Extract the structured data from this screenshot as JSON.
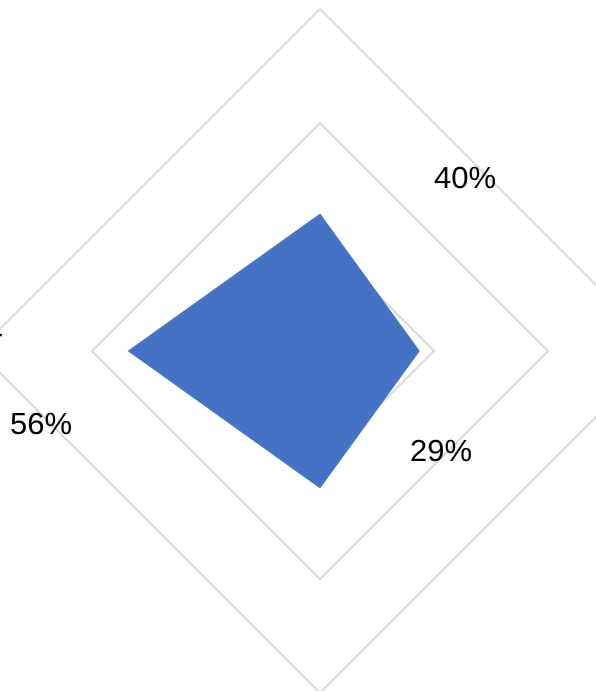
{
  "chart_data": {
    "type": "radar",
    "axes": [
      "",
      "",
      "",
      ""
    ],
    "visible_axis_labels": [
      "r"
    ],
    "series": [
      {
        "values": [
          40,
          29,
          40,
          56
        ],
        "color": "#4472c4"
      }
    ],
    "data_labels": [
      "40%",
      "29%",
      "56%"
    ],
    "rmax": 100,
    "grid_rings": 3,
    "grid_color": "#d9d9d9",
    "legend": "none"
  }
}
